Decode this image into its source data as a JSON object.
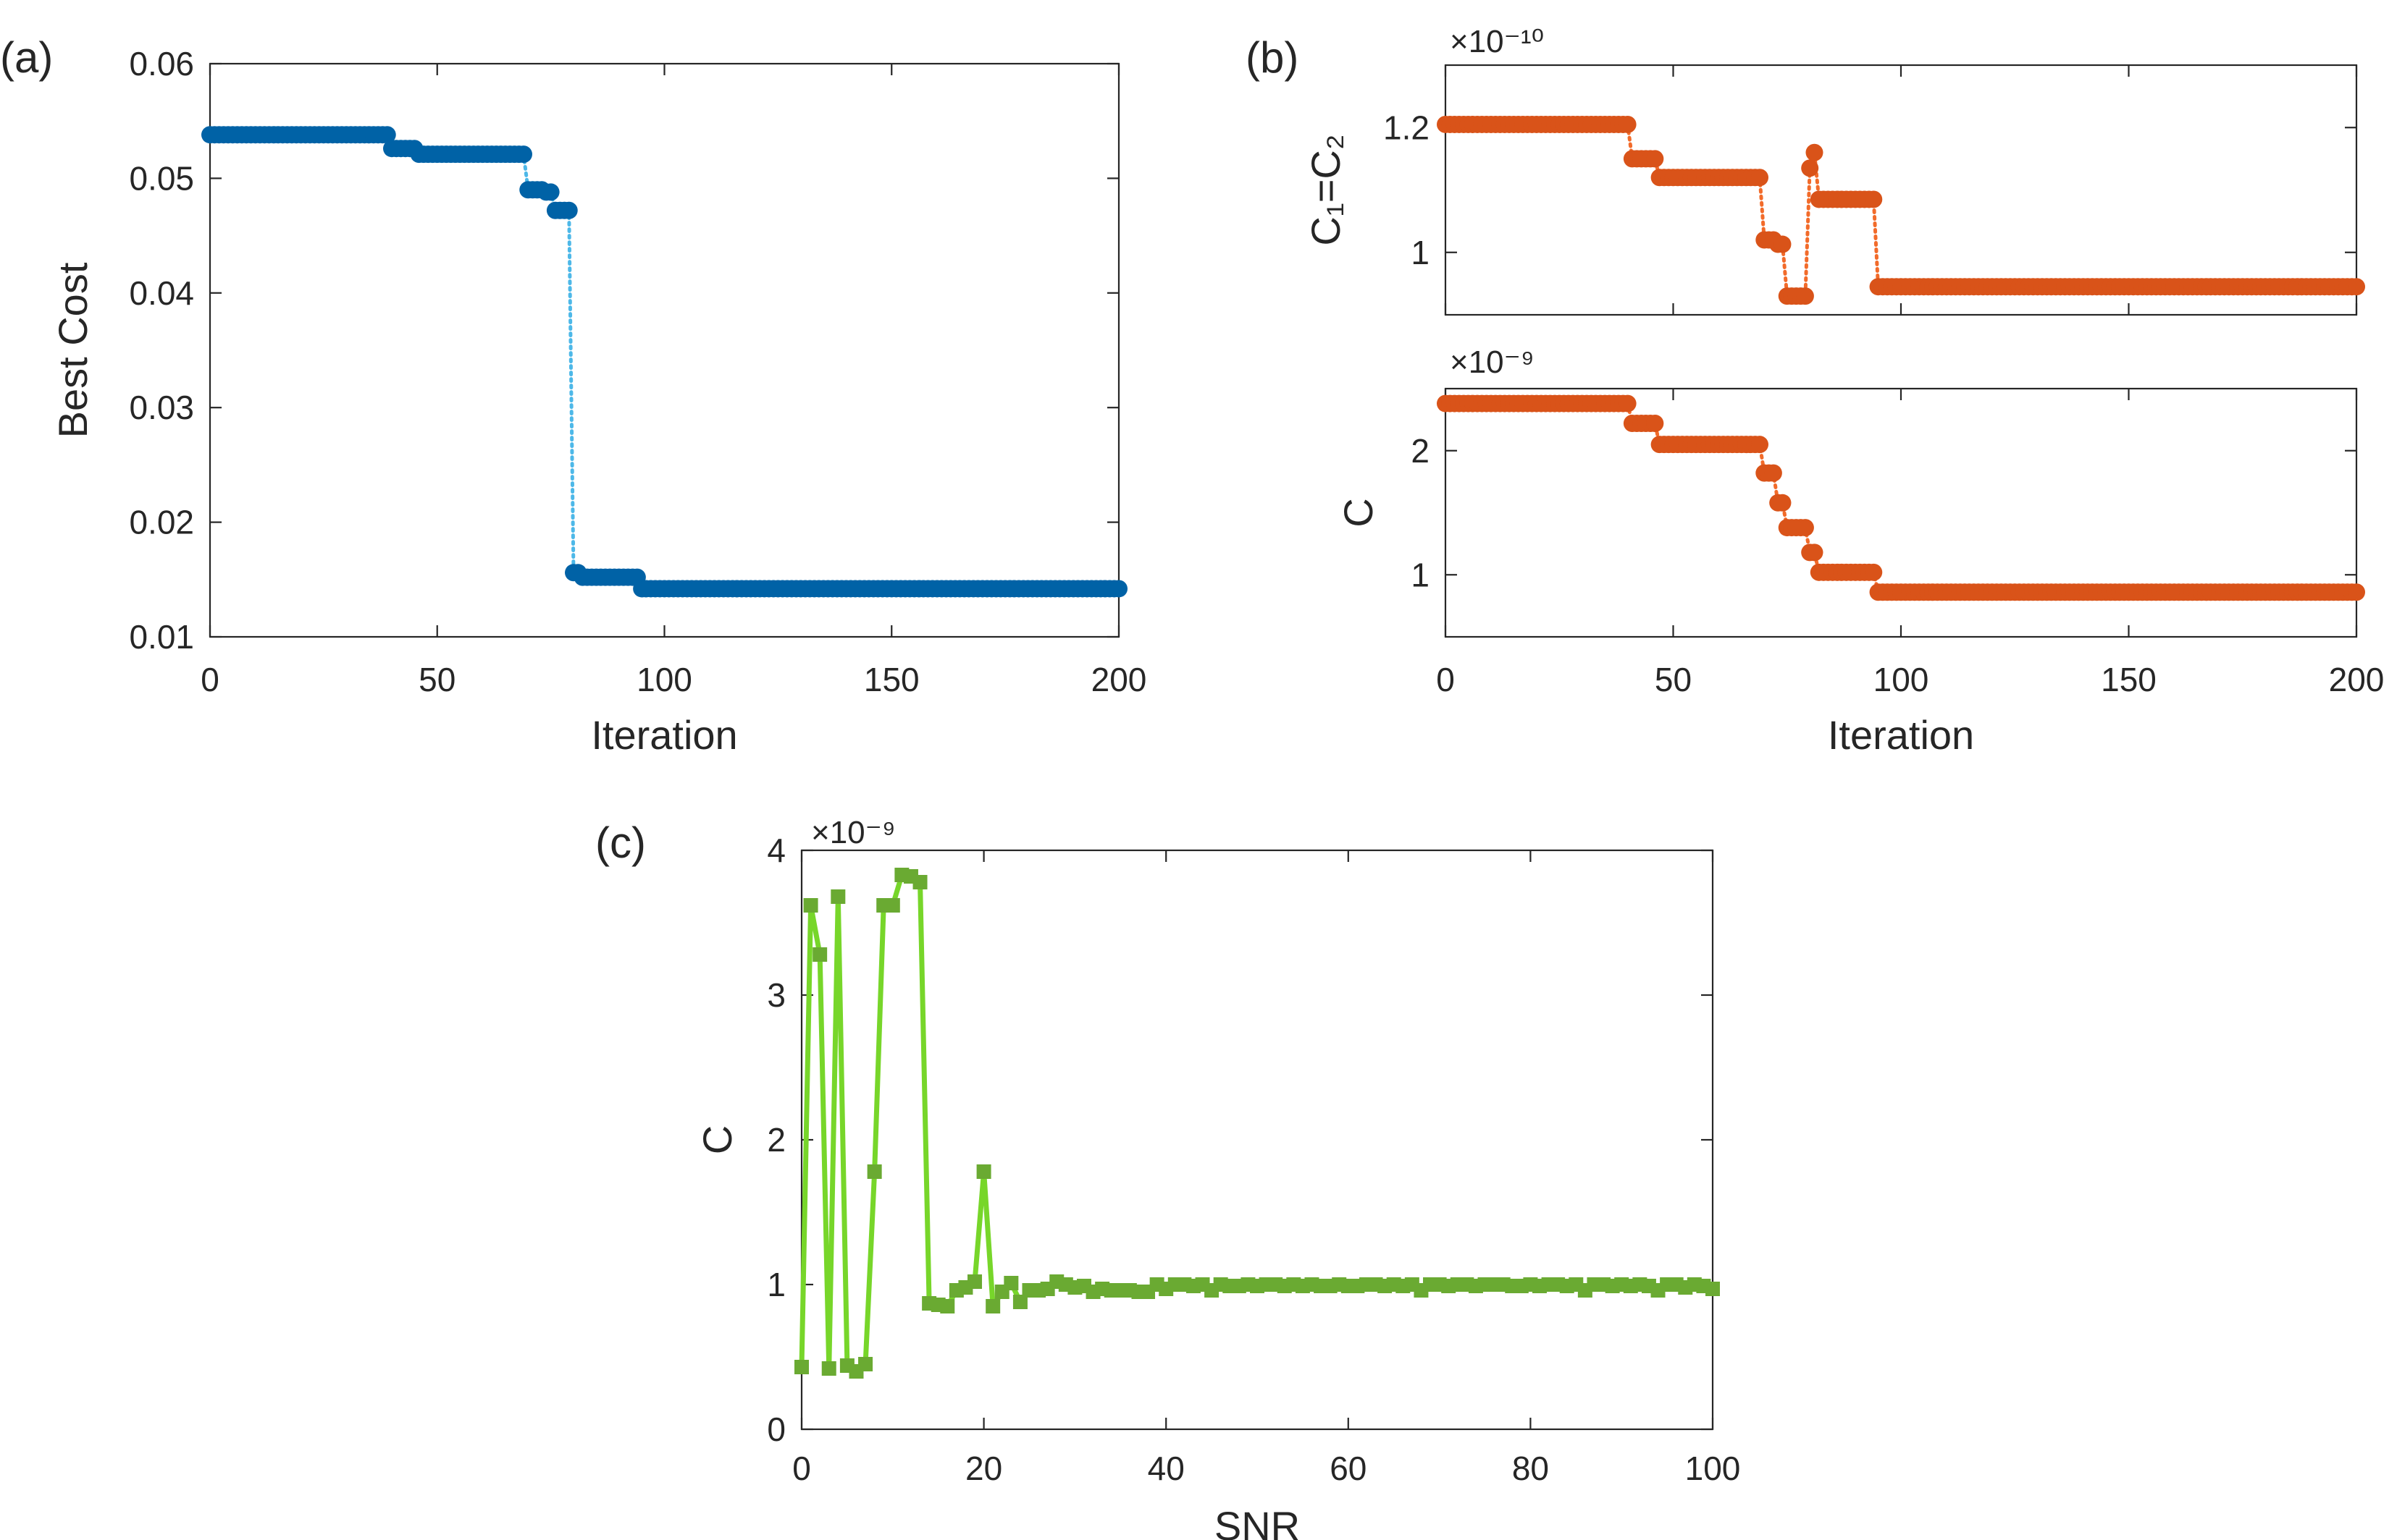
{
  "chart_data": [
    {
      "id": "a",
      "type": "scatter",
      "panel_label": "(a)",
      "xlabel": "Iteration",
      "ylabel": "Best Cost",
      "xlim": [
        0,
        200
      ],
      "ylim": [
        0.01,
        0.06
      ],
      "xticks": [
        0,
        50,
        100,
        150,
        200
      ],
      "xtick_labels": [
        "0",
        "50",
        "100",
        "150",
        "200"
      ],
      "yticks": [
        0.01,
        0.02,
        0.03,
        0.04,
        0.05,
        0.06
      ],
      "ytick_labels": [
        "0.01",
        "0.02",
        "0.03",
        "0.04",
        "0.05",
        "0.06"
      ],
      "marker_color": "#0062a6",
      "line_color": "#4db8e8",
      "series": [
        {
          "name": "Best Cost",
          "steps": [
            {
              "from": 0,
              "to": 39,
              "value": 0.0538
            },
            {
              "from": 40,
              "to": 45,
              "value": 0.0526
            },
            {
              "from": 46,
              "to": 69,
              "value": 0.0521
            },
            {
              "from": 70,
              "to": 73,
              "value": 0.049
            },
            {
              "from": 74,
              "to": 75,
              "value": 0.0488
            },
            {
              "from": 76,
              "to": 79,
              "value": 0.0472
            },
            {
              "from": 80,
              "to": 81,
              "value": 0.0156
            },
            {
              "from": 82,
              "to": 94,
              "value": 0.0152
            },
            {
              "from": 95,
              "to": 200,
              "value": 0.0142
            }
          ]
        }
      ]
    },
    {
      "id": "b-top",
      "type": "scatter",
      "panel_label": "(b)",
      "ylabel": "C₁=C₂",
      "exponent_label": "×10⁻¹⁰",
      "xlim": [
        0,
        200
      ],
      "ylim": [
        0.9,
        1.3
      ],
      "yticks": [
        1.0,
        1.2
      ],
      "ytick_labels": [
        "1",
        "1.2"
      ],
      "xticks": [
        0,
        50,
        100,
        150,
        200
      ],
      "marker_color": "#d95319",
      "line_color": "#f26b2a",
      "series": [
        {
          "name": "C1=C2",
          "steps": [
            {
              "from": 0,
              "to": 40,
              "value": 1.205
            },
            {
              "from": 41,
              "to": 46,
              "value": 1.15
            },
            {
              "from": 47,
              "to": 69,
              "value": 1.12
            },
            {
              "from": 70,
              "to": 72,
              "value": 1.02
            },
            {
              "from": 73,
              "to": 74,
              "value": 1.013
            },
            {
              "from": 75,
              "to": 79,
              "value": 0.93
            },
            {
              "from": 80,
              "to": 80,
              "value": 1.135
            },
            {
              "from": 81,
              "to": 81,
              "value": 1.16
            },
            {
              "from": 82,
              "to": 94,
              "value": 1.085
            },
            {
              "from": 95,
              "to": 200,
              "value": 0.945
            }
          ]
        }
      ]
    },
    {
      "id": "b-bottom",
      "type": "scatter",
      "ylabel": "C",
      "xlabel": "Iteration",
      "exponent_label": "×10⁻⁹",
      "xlim": [
        0,
        200
      ],
      "ylim": [
        0.5,
        2.5
      ],
      "xticks": [
        0,
        50,
        100,
        150,
        200
      ],
      "xtick_labels": [
        "0",
        "50",
        "100",
        "150",
        "200"
      ],
      "yticks": [
        1,
        2
      ],
      "ytick_labels": [
        "1",
        "2"
      ],
      "marker_color": "#d95319",
      "line_color": "#f26b2a",
      "series": [
        {
          "name": "C",
          "steps": [
            {
              "from": 0,
              "to": 40,
              "value": 2.38
            },
            {
              "from": 41,
              "to": 46,
              "value": 2.22
            },
            {
              "from": 47,
              "to": 69,
              "value": 2.05
            },
            {
              "from": 70,
              "to": 72,
              "value": 1.82
            },
            {
              "from": 73,
              "to": 74,
              "value": 1.58
            },
            {
              "from": 75,
              "to": 79,
              "value": 1.38
            },
            {
              "from": 80,
              "to": 81,
              "value": 1.18
            },
            {
              "from": 82,
              "to": 94,
              "value": 1.02
            },
            {
              "from": 95,
              "to": 200,
              "value": 0.86
            }
          ]
        }
      ]
    },
    {
      "id": "c",
      "type": "line",
      "panel_label": "(c)",
      "xlabel": "SNR",
      "ylabel": "C",
      "exponent_label": "×10⁻⁹",
      "xlim": [
        0,
        100
      ],
      "ylim": [
        0,
        4
      ],
      "xticks": [
        0,
        20,
        40,
        60,
        80,
        100
      ],
      "xtick_labels": [
        "0",
        "20",
        "40",
        "60",
        "80",
        "100"
      ],
      "yticks": [
        0,
        1,
        2,
        3,
        4
      ],
      "ytick_labels": [
        "0",
        "1",
        "2",
        "3",
        "4"
      ],
      "line_color": "#77d62a",
      "marker_color": "#6aaa32",
      "series": [
        {
          "name": "C vs SNR",
          "x": [
            0,
            1,
            2,
            3,
            4,
            5,
            6,
            7,
            8,
            9,
            10,
            11,
            12,
            13,
            14,
            15,
            16,
            17,
            18,
            19,
            20,
            21,
            22,
            23,
            24,
            25,
            26,
            27,
            28,
            29,
            30,
            31,
            32,
            33,
            34,
            35,
            36,
            37,
            38,
            39,
            40,
            41,
            42,
            43,
            44,
            45,
            46,
            47,
            48,
            49,
            50,
            51,
            52,
            53,
            54,
            55,
            56,
            57,
            58,
            59,
            60,
            61,
            62,
            63,
            64,
            65,
            66,
            67,
            68,
            69,
            70,
            71,
            72,
            73,
            74,
            75,
            76,
            77,
            78,
            79,
            80,
            81,
            82,
            83,
            84,
            85,
            86,
            87,
            88,
            89,
            90,
            91,
            92,
            93,
            94,
            95,
            96,
            97,
            98,
            99,
            100
          ],
          "values": [
            0.43,
            3.62,
            3.28,
            0.42,
            3.68,
            0.44,
            0.4,
            0.45,
            1.78,
            3.62,
            3.62,
            3.83,
            3.82,
            3.78,
            0.87,
            0.86,
            0.85,
            0.96,
            0.98,
            1.02,
            1.78,
            0.85,
            0.95,
            1.01,
            0.88,
            0.96,
            0.96,
            0.97,
            1.02,
            1.0,
            0.98,
            0.99,
            0.95,
            0.97,
            0.96,
            0.96,
            0.96,
            0.95,
            0.95,
            1.0,
            0.97,
            1.0,
            1.0,
            0.99,
            1.0,
            0.96,
            1.0,
            0.99,
            0.99,
            1.0,
            0.99,
            1.0,
            1.0,
            0.99,
            1.0,
            0.99,
            1.0,
            0.99,
            0.99,
            1.0,
            0.99,
            0.99,
            1.0,
            1.0,
            0.99,
            1.0,
            0.99,
            1.0,
            0.96,
            1.0,
            1.0,
            0.99,
            1.0,
            1.0,
            0.99,
            1.0,
            1.0,
            1.0,
            0.99,
            0.99,
            1.0,
            0.99,
            1.0,
            1.0,
            0.99,
            1.0,
            0.96,
            1.0,
            1.0,
            0.99,
            1.0,
            0.99,
            1.0,
            0.99,
            0.96,
            1.0,
            1.0,
            0.98,
            1.0,
            0.99,
            0.97
          ]
        }
      ]
    }
  ]
}
